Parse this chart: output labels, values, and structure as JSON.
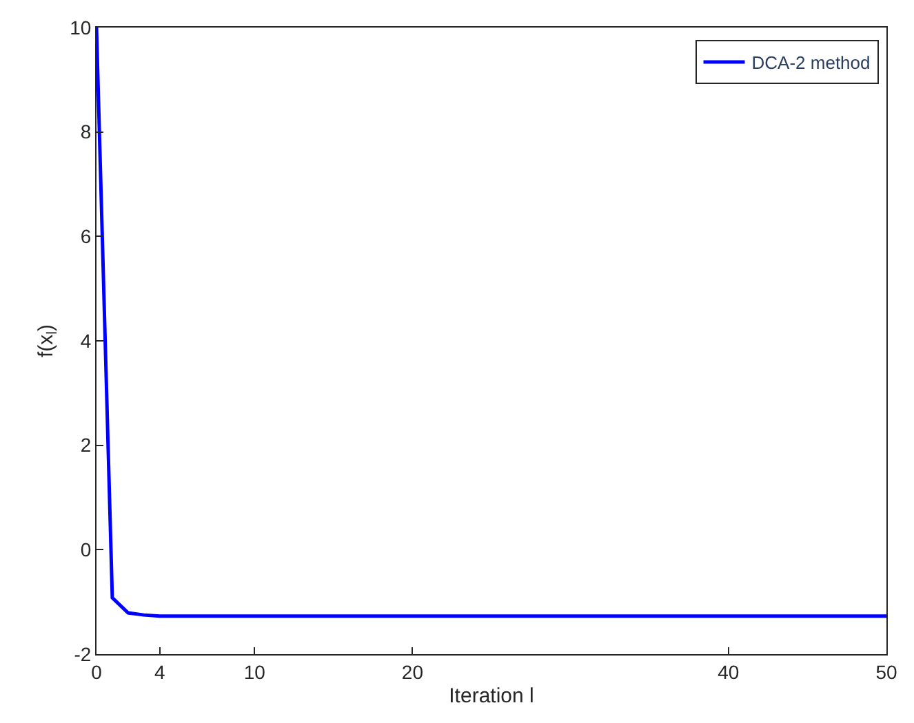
{
  "chart_data": {
    "type": "line",
    "xlabel": "Iteration l",
    "ylabel": "f(x$_{l}$)",
    "x": [
      0,
      1,
      2,
      3,
      4,
      10,
      20,
      30,
      40,
      50
    ],
    "series": [
      {
        "name": "DCA-2 method",
        "color": "#0000ff",
        "values": [
          10,
          -0.92,
          -1.21,
          -1.25,
          -1.27,
          -1.27,
          -1.27,
          -1.27,
          -1.27,
          -1.27
        ]
      }
    ],
    "xlim": [
      0,
      50
    ],
    "xticks": [
      0,
      4,
      10,
      20,
      40,
      50
    ],
    "ylim": [
      -2,
      10
    ],
    "yticks": [
      -2,
      0,
      2,
      4,
      6,
      8,
      10
    ],
    "legend": "top right",
    "marker": "none",
    "line_style": "solid"
  }
}
